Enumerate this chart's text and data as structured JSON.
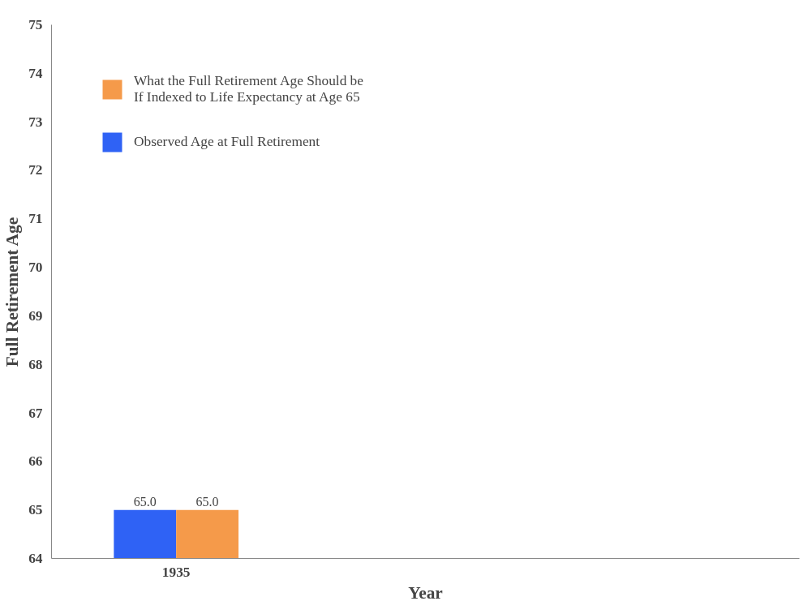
{
  "chart_data": {
    "type": "bar",
    "xlabel": "Year",
    "ylabel": "Full Retirement Age",
    "categories": [
      "1935",
      null,
      null
    ],
    "series": [
      {
        "name": "Observed Age at Full Retirement",
        "color": "#2f62f5",
        "values": [
          65.0,
          null,
          null
        ],
        "value_labels": [
          "65.0",
          null,
          null
        ]
      },
      {
        "name": "What the Full Retirement Age Should be If Indexed to Life Expectancy at Age 65",
        "color": "#f59a4a",
        "values": [
          65.0,
          null,
          null
        ],
        "value_labels": [
          "65.0",
          null,
          null
        ]
      }
    ],
    "ylim": [
      64,
      75
    ],
    "yticks": [
      64,
      65,
      66,
      67,
      68,
      69,
      70,
      71,
      72,
      73,
      74,
      75
    ],
    "grid": false,
    "legend": "top left"
  }
}
